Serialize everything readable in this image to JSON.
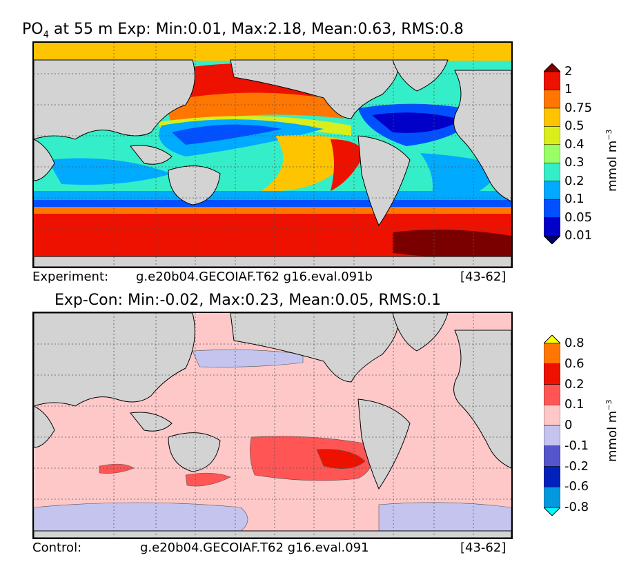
{
  "chart_data": [
    {
      "type": "heatmap",
      "title_prefix": "PO",
      "title_sub": "4",
      "title_rest": "at 55 m Exp: Min:0.01, Max:2.18, Mean:0.63, RMS:0.8",
      "caption_left": "Experiment:",
      "caption_mid": "g.e20b04.GECOIAF.T62 g16.eval.091b",
      "caption_right": "[43-62]",
      "colorbar": {
        "unit": "mmol m",
        "unit_sup": "−3",
        "levels": [
          "0.01",
          "0.05",
          "0.1",
          "0.2",
          "0.3",
          "0.4",
          "0.5",
          "0.75",
          "1",
          "2"
        ],
        "colors": [
          "#00006e",
          "#0000c8",
          "#0050ff",
          "#00aaff",
          "#33eec8",
          "#99ff66",
          "#d9ee1a",
          "#ffc400",
          "#ff7700",
          "#ee1100",
          "#7a0000"
        ]
      },
      "stats": {
        "min": 0.01,
        "max": 2.18,
        "mean": 0.63,
        "rms": 0.8
      },
      "depth_m": 55
    },
    {
      "type": "heatmap",
      "title": "Exp-Con: Min:-0.02, Max:0.23, Mean:0.05, RMS:0.1",
      "caption_left": "Control:",
      "caption_mid": "g.e20b04.GECOIAF.T62 g16.eval.091",
      "caption_right": "[43-62]",
      "colorbar": {
        "unit": "mmol m",
        "unit_sup": "−3",
        "levels": [
          "-0.8",
          "-0.6",
          "-0.2",
          "-0.1",
          "0",
          "0.1",
          "0.2",
          "0.6",
          "0.8"
        ],
        "colors": [
          "#00ffff",
          "#0099dd",
          "#0022bb",
          "#5555cc",
          "#c4c4ee",
          "#ffc8c8",
          "#ff5555",
          "#ee1100",
          "#ff7700",
          "#ffff00"
        ]
      },
      "stats": {
        "min": -0.02,
        "max": 0.23,
        "mean": 0.05,
        "rms": 0.1
      }
    }
  ],
  "colors": {
    "land": "#d3d3d3",
    "coast": "#000000",
    "grid": "#555555"
  }
}
